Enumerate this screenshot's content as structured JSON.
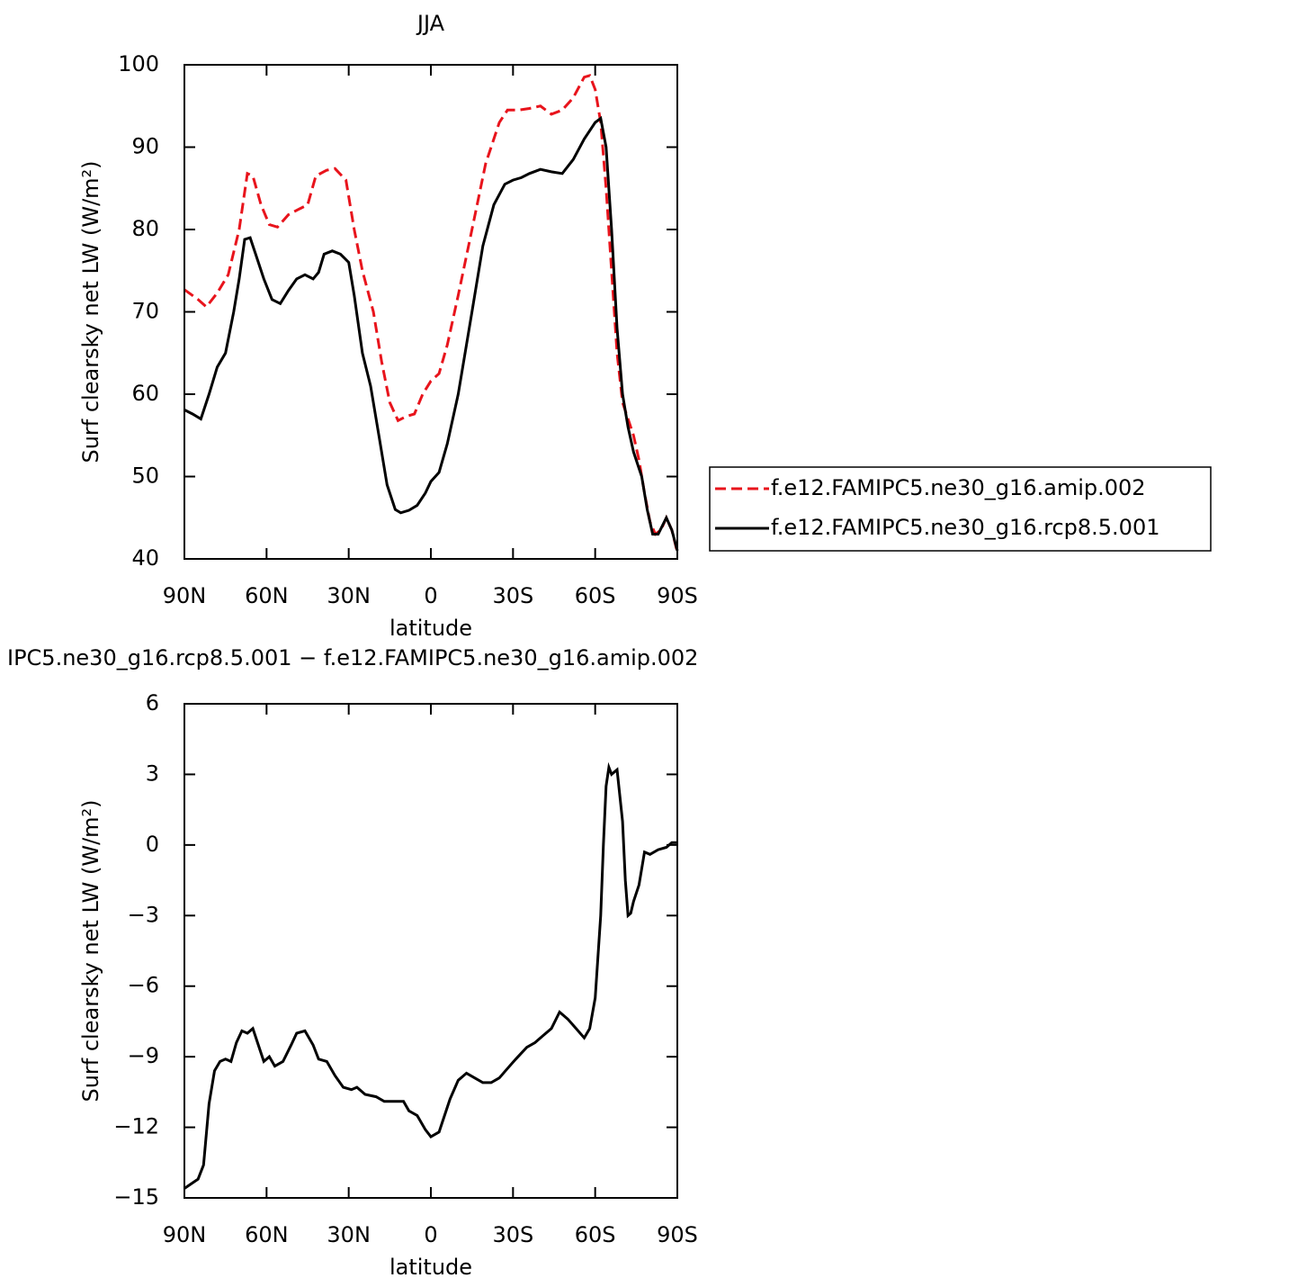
{
  "chart_data": [
    {
      "type": "line",
      "title": "JJA",
      "xlabel": "latitude",
      "ylabel": "Surf clearsky net LW (W/m²)",
      "xlim": [
        90,
        -90
      ],
      "xticks": [
        {
          "value": 90,
          "label": "90N"
        },
        {
          "value": 60,
          "label": "60N"
        },
        {
          "value": 30,
          "label": "30N"
        },
        0,
        {
          "value": -30,
          "label": "30S"
        },
        {
          "value": -60,
          "label": "60S"
        },
        {
          "value": -90,
          "label": "90S"
        }
      ],
      "ylim": [
        40,
        100
      ],
      "yticks": [
        40,
        50,
        60,
        70,
        80,
        90,
        100
      ],
      "legend": "right",
      "series": [
        {
          "name": "f.e12.FAMIPC5.ne30_g16.amip.002",
          "color": "#e8141c",
          "style": "dashed",
          "x": [
            90,
            85,
            82,
            78,
            74,
            70,
            67,
            65,
            62,
            59,
            56,
            52,
            48,
            45,
            42,
            38,
            35,
            31,
            28,
            25,
            21,
            18,
            15,
            12,
            9,
            6,
            3,
            0,
            -3,
            -6,
            -10,
            -15,
            -20,
            -25,
            -28,
            -32,
            -36,
            -40,
            -44,
            -48,
            -52,
            -56,
            -58,
            -60,
            -62,
            -64,
            -66,
            -68,
            -70,
            -74,
            -76,
            -78,
            -80,
            -82,
            -84,
            -86,
            -88,
            -90
          ],
          "values": [
            72.7,
            71.5,
            70.6,
            72.3,
            74.5,
            80,
            86.8,
            86.5,
            83,
            80.6,
            80.3,
            81.8,
            82.5,
            83,
            86.5,
            87.2,
            87.4,
            86,
            80,
            75,
            70,
            64,
            59,
            56.8,
            57.3,
            57.6,
            60,
            61.6,
            62.5,
            66,
            72,
            80,
            88,
            93,
            94.5,
            94.5,
            94.7,
            95,
            94,
            94.5,
            96,
            98.5,
            98.7,
            97,
            93,
            85,
            75,
            65,
            59,
            55,
            52,
            48,
            44.5,
            43,
            43.5,
            45,
            43.5,
            40.8
          ]
        },
        {
          "name": "f.e12.FAMIPC5.ne30_g16.rcp8.5.001",
          "color": "#000000",
          "style": "solid",
          "x": [
            90,
            87,
            84,
            81,
            78,
            75,
            72,
            70,
            68,
            66,
            64,
            61,
            58,
            55,
            52,
            49,
            46,
            43,
            41,
            39,
            36,
            33,
            30,
            28,
            25,
            22,
            19,
            16,
            13,
            11,
            8,
            5,
            2,
            0,
            -3,
            -6,
            -10,
            -15,
            -19,
            -23,
            -27,
            -30,
            -33,
            -36,
            -40,
            -44,
            -48,
            -52,
            -56,
            -60,
            -62,
            -64,
            -66,
            -68,
            -70,
            -72,
            -74,
            -77,
            -79,
            -81,
            -83,
            -86,
            -88,
            -90
          ],
          "values": [
            58.1,
            57.6,
            57,
            60,
            63.3,
            65,
            70,
            74,
            78.8,
            79,
            77,
            74,
            71.5,
            71,
            72.6,
            74,
            74.5,
            74,
            74.8,
            77,
            77.4,
            77,
            76,
            72,
            65,
            61,
            55,
            49,
            46,
            45.6,
            45.9,
            46.5,
            48,
            49.4,
            50.5,
            54,
            60,
            70,
            78,
            83,
            85.5,
            86,
            86.3,
            86.8,
            87.3,
            87,
            86.8,
            88.5,
            91,
            93,
            93.5,
            90,
            80,
            68,
            60,
            56,
            53,
            50,
            46,
            43,
            43,
            45,
            43.5,
            41
          ]
        }
      ]
    },
    {
      "type": "line",
      "title": "IPC5.ne30_g16.rcp8.5.001 − f.e12.FAMIPC5.ne30_g16.amip.002",
      "xlabel": "latitude",
      "ylabel": "Surf clearsky net LW (W/m²)",
      "xlim": [
        90,
        -90
      ],
      "xticks": [
        {
          "value": 90,
          "label": "90N"
        },
        {
          "value": 60,
          "label": "60N"
        },
        {
          "value": 30,
          "label": "30N"
        },
        0,
        {
          "value": -30,
          "label": "30S"
        },
        {
          "value": -60,
          "label": "60S"
        },
        {
          "value": -90,
          "label": "90S"
        }
      ],
      "ylim": [
        -15,
        6
      ],
      "yticks": [
        {
          "value": -15,
          "label": "−15"
        },
        {
          "value": -12,
          "label": "−12"
        },
        {
          "value": -9,
          "label": "−9"
        },
        {
          "value": -6,
          "label": "−6"
        },
        {
          "value": -3,
          "label": "−3"
        },
        0,
        3,
        6
      ],
      "series": [
        {
          "color": "#000000",
          "style": "solid",
          "x": [
            90,
            85,
            83,
            81,
            79,
            77,
            75,
            73,
            71,
            69,
            67,
            65,
            63,
            61,
            59,
            57,
            54,
            51,
            49,
            46,
            43,
            41,
            38,
            35,
            32,
            29,
            27,
            24,
            20,
            17,
            13,
            10,
            8,
            5,
            2,
            0,
            -3,
            -5,
            -7,
            -10,
            -13,
            -16,
            -19,
            -22,
            -25,
            -28,
            -31,
            -35,
            -38,
            -41,
            -44,
            -47,
            -50,
            -53,
            -56,
            -58,
            -60,
            -62,
            -63,
            -64,
            -65,
            -66,
            -68,
            -70,
            -71,
            -72,
            -73,
            -74,
            -76,
            -78,
            -80,
            -83,
            -86,
            -88,
            -90
          ],
          "values": [
            -14.6,
            -14.2,
            -13.6,
            -11,
            -9.6,
            -9.2,
            -9.1,
            -9.2,
            -8.4,
            -7.9,
            -8,
            -7.8,
            -8.5,
            -9.2,
            -9,
            -9.4,
            -9.2,
            -8.5,
            -8,
            -7.9,
            -8.5,
            -9.1,
            -9.2,
            -9.8,
            -10.3,
            -10.4,
            -10.3,
            -10.6,
            -10.7,
            -10.9,
            -10.9,
            -10.9,
            -11.3,
            -11.5,
            -12.1,
            -12.4,
            -12.2,
            -11.5,
            -10.8,
            -10,
            -9.7,
            -9.9,
            -10.1,
            -10.1,
            -9.9,
            -9.5,
            -9.1,
            -8.6,
            -8.4,
            -8.1,
            -7.8,
            -7.1,
            -7.4,
            -7.8,
            -8.2,
            -7.8,
            -6.5,
            -3,
            0,
            2.5,
            3.3,
            3,
            3.2,
            1,
            -1.5,
            -3,
            -2.9,
            -2.4,
            -1.7,
            -0.3,
            -0.4,
            -0.2,
            -0.1,
            0.1,
            0.1
          ]
        }
      ]
    }
  ]
}
